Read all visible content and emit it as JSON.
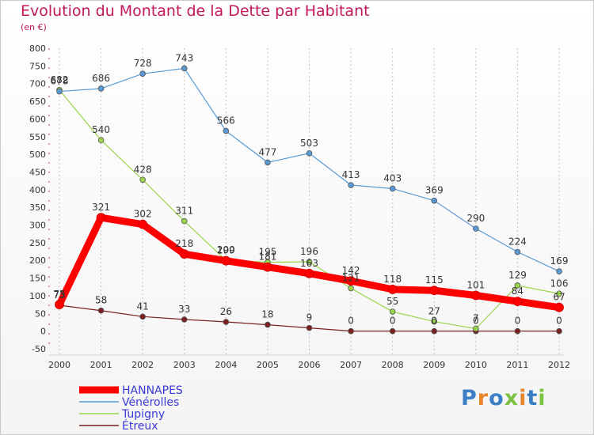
{
  "header": {
    "title": "Evolution du Montant de la Dette par Habitant",
    "subtitle": "(en €)"
  },
  "logo": {
    "text": "Proxiti",
    "colors": [
      "#3a7fc4",
      "#e8842a",
      "#3a7fc4",
      "#7cc242",
      "#e8842a",
      "#3a7fc4",
      "#7cc242"
    ]
  },
  "chart_data": {
    "type": "line",
    "title": "Evolution du Montant de la Dette par Habitant",
    "subtitle": "(en €)",
    "xlabel": "",
    "ylabel": "",
    "ylim": [
      -50,
      800
    ],
    "yticks": [
      -50,
      0,
      50,
      100,
      150,
      200,
      250,
      300,
      350,
      400,
      450,
      500,
      550,
      600,
      650,
      700,
      750,
      800
    ],
    "x": [
      "2000",
      "2001",
      "2002",
      "2003",
      "2004",
      "2005",
      "2006",
      "2007",
      "2008",
      "2009",
      "2010",
      "2011",
      "2012"
    ],
    "grid": "vertical dashed",
    "legend": "bottom-left",
    "series": [
      {
        "name": "HANNAPES",
        "color": "#ff0000",
        "style": "thick",
        "values": [
          75,
          321,
          302,
          218,
          199,
          181,
          163,
          142,
          118,
          115,
          101,
          84,
          67
        ]
      },
      {
        "name": "Vénérolles",
        "color": "#5a9ad4",
        "values": [
          678,
          686,
          728,
          743,
          566,
          477,
          503,
          413,
          403,
          369,
          290,
          224,
          169
        ]
      },
      {
        "name": "Tupigny",
        "color": "#9ad44a",
        "values": [
          682,
          540,
          428,
          311,
          200,
          195,
          196,
          121,
          55,
          27,
          7,
          129,
          106
        ]
      },
      {
        "name": "Étreux",
        "color": "#7a2020",
        "values": [
          73,
          58,
          41,
          33,
          26,
          18,
          9,
          0,
          0,
          0,
          0,
          0,
          0
        ]
      }
    ]
  }
}
